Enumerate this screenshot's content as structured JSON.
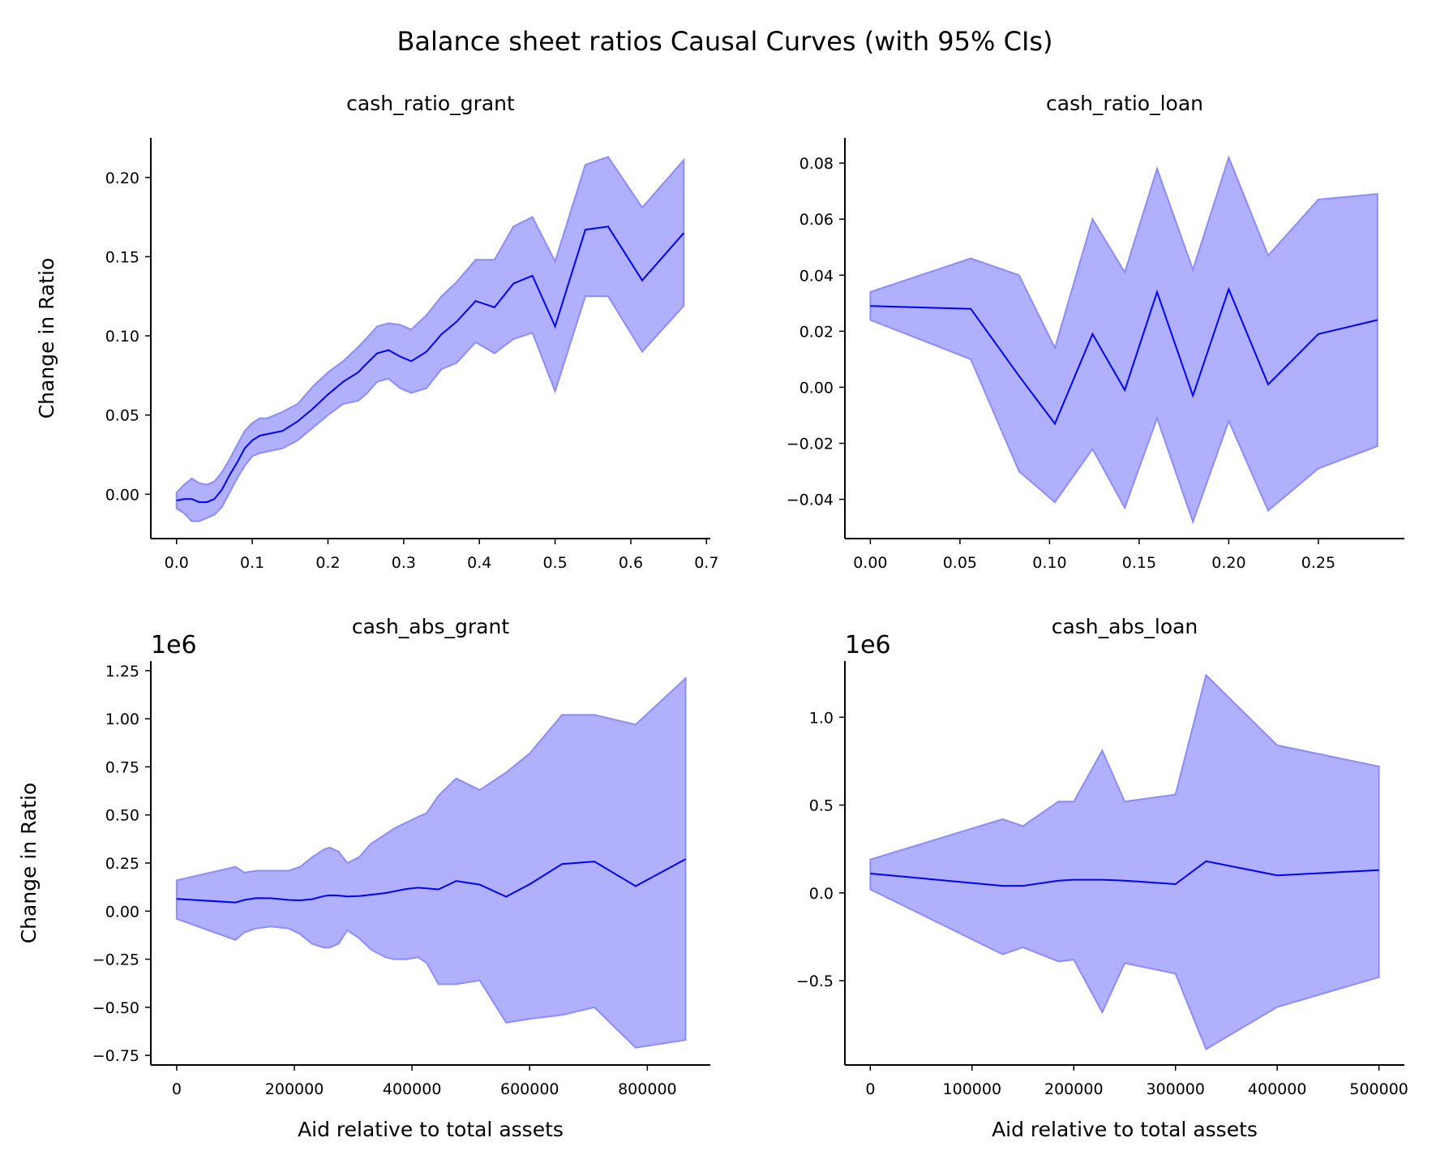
{
  "figure_title": "Balance sheet ratios Causal Curves (with 95% CIs)",
  "colors": {
    "line": "#0000ff",
    "band": "#b0b0ff",
    "band_edge": "#8c8cff",
    "axis": "#000000"
  },
  "chart_data": [
    {
      "type": "line",
      "title": "cash_ratio_grant",
      "xlabel": "",
      "ylabel": "Change in Ratio",
      "ylim": [
        -0.028,
        0.225
      ],
      "xlim": [
        -0.034,
        0.705
      ],
      "xticks": [
        "0.0",
        "0.1",
        "0.2",
        "0.3",
        "0.4",
        "0.5",
        "0.6",
        "0.7"
      ],
      "yticks": [
        "0.00",
        "0.05",
        "0.10",
        "0.15",
        "0.20"
      ],
      "offset_label": "",
      "series": [
        {
          "x": [
            0.0,
            0.01,
            0.02,
            0.03,
            0.04,
            0.05,
            0.06,
            0.07,
            0.08,
            0.09,
            0.1,
            0.11,
            0.12,
            0.14,
            0.16,
            0.18,
            0.2,
            0.22,
            0.24,
            0.25,
            0.265,
            0.28,
            0.295,
            0.31,
            0.33,
            0.35,
            0.37,
            0.395,
            0.42,
            0.445,
            0.47,
            0.5,
            0.54,
            0.57,
            0.615,
            0.67
          ],
          "y": [
            -0.004,
            -0.003,
            -0.003,
            -0.005,
            -0.005,
            -0.003,
            0.003,
            0.012,
            0.02,
            0.029,
            0.034,
            0.037,
            0.038,
            0.04,
            0.046,
            0.054,
            0.063,
            0.071,
            0.077,
            0.082,
            0.089,
            0.091,
            0.087,
            0.084,
            0.09,
            0.101,
            0.109,
            0.122,
            0.118,
            0.133,
            0.138,
            0.106,
            0.167,
            0.169,
            0.135,
            0.165
          ],
          "lower": [
            -0.009,
            -0.012,
            -0.017,
            -0.017,
            -0.015,
            -0.013,
            -0.008,
            0.001,
            0.01,
            0.018,
            0.024,
            0.026,
            0.027,
            0.029,
            0.034,
            0.042,
            0.05,
            0.057,
            0.059,
            0.063,
            0.071,
            0.073,
            0.067,
            0.064,
            0.067,
            0.079,
            0.083,
            0.096,
            0.089,
            0.098,
            0.102,
            0.065,
            0.125,
            0.125,
            0.09,
            0.119
          ],
          "upper": [
            0.001,
            0.006,
            0.01,
            0.007,
            0.006,
            0.008,
            0.014,
            0.022,
            0.031,
            0.04,
            0.045,
            0.048,
            0.048,
            0.052,
            0.057,
            0.068,
            0.077,
            0.084,
            0.093,
            0.098,
            0.106,
            0.108,
            0.107,
            0.104,
            0.113,
            0.125,
            0.134,
            0.148,
            0.148,
            0.169,
            0.175,
            0.147,
            0.208,
            0.213,
            0.181,
            0.211
          ]
        }
      ]
    },
    {
      "type": "line",
      "title": "cash_ratio_loan",
      "xlabel": "",
      "ylabel": "",
      "ylim": [
        -0.054,
        0.089
      ],
      "xlim": [
        -0.0142,
        0.298
      ],
      "xticks": [
        "0.00",
        "0.05",
        "0.10",
        "0.15",
        "0.20",
        "0.25"
      ],
      "yticks": [
        "−0.04",
        "−0.02",
        "0.00",
        "0.02",
        "0.04",
        "0.06",
        "0.08"
      ],
      "offset_label": "",
      "series": [
        {
          "x": [
            0.0,
            0.056,
            0.083,
            0.103,
            0.124,
            0.142,
            0.16,
            0.18,
            0.2,
            0.222,
            0.25,
            0.283
          ],
          "y": [
            0.029,
            0.028,
            0.004,
            -0.013,
            0.019,
            -0.001,
            0.034,
            -0.003,
            0.035,
            0.001,
            0.019,
            0.024
          ],
          "lower": [
            0.024,
            0.01,
            -0.03,
            -0.041,
            -0.022,
            -0.043,
            -0.011,
            -0.048,
            -0.012,
            -0.044,
            -0.029,
            -0.021
          ],
          "upper": [
            0.034,
            0.046,
            0.04,
            0.014,
            0.06,
            0.041,
            0.078,
            0.042,
            0.082,
            0.047,
            0.067,
            0.069
          ]
        }
      ]
    },
    {
      "type": "line",
      "title": "cash_abs_grant",
      "xlabel": "Aid relative to total assets",
      "ylabel": "Change in Ratio",
      "ylim": [
        -0.8,
        1.3
      ],
      "xlim": [
        -44000,
        907000
      ],
      "xticks": [
        "0",
        "200000",
        "400000",
        "600000",
        "800000"
      ],
      "yticks": [
        "−0.75",
        "−0.50",
        "−0.25",
        "0.00",
        "0.25",
        "0.50",
        "0.75",
        "1.00",
        "1.25"
      ],
      "offset_label": "1e6",
      "series": [
        {
          "x": [
            0,
            100000,
            115000,
            135000,
            160000,
            190000,
            210000,
            230000,
            250000,
            260000,
            275000,
            290000,
            310000,
            330000,
            355000,
            370000,
            390000,
            410000,
            425000,
            445000,
            475000,
            515000,
            560000,
            600000,
            655000,
            710000,
            780000,
            865000
          ],
          "y": [
            0.063,
            0.045,
            0.058,
            0.068,
            0.067,
            0.058,
            0.056,
            0.062,
            0.078,
            0.082,
            0.081,
            0.076,
            0.078,
            0.085,
            0.094,
            0.103,
            0.115,
            0.122,
            0.118,
            0.113,
            0.157,
            0.138,
            0.075,
            0.14,
            0.245,
            0.258,
            0.13,
            0.27
          ],
          "lower": [
            -0.04,
            -0.15,
            -0.11,
            -0.09,
            -0.08,
            -0.09,
            -0.12,
            -0.17,
            -0.19,
            -0.19,
            -0.17,
            -0.1,
            -0.14,
            -0.2,
            -0.24,
            -0.25,
            -0.25,
            -0.24,
            -0.27,
            -0.38,
            -0.38,
            -0.36,
            -0.58,
            -0.56,
            -0.54,
            -0.5,
            -0.71,
            -0.67
          ],
          "upper": [
            0.16,
            0.23,
            0.2,
            0.21,
            0.21,
            0.21,
            0.23,
            0.28,
            0.32,
            0.33,
            0.31,
            0.25,
            0.28,
            0.35,
            0.4,
            0.43,
            0.46,
            0.49,
            0.51,
            0.6,
            0.69,
            0.63,
            0.72,
            0.82,
            1.02,
            1.02,
            0.97,
            1.21
          ]
        }
      ]
    },
    {
      "type": "line",
      "title": "cash_abs_loan",
      "xlabel": "Aid relative to total assets",
      "ylabel": "",
      "ylim": [
        -0.98,
        1.32
      ],
      "xlim": [
        -25000,
        525000
      ],
      "xticks": [
        "0",
        "100000",
        "200000",
        "300000",
        "400000",
        "500000"
      ],
      "yticks": [
        "−0.5",
        "0.0",
        "0.5",
        "1.0"
      ],
      "offset_label": "1e6",
      "series": [
        {
          "x": [
            0,
            130000,
            150000,
            185000,
            200000,
            228000,
            250000,
            300000,
            330000,
            400000,
            500000
          ],
          "y": [
            0.11,
            0.04,
            0.04,
            0.07,
            0.075,
            0.075,
            0.07,
            0.05,
            0.18,
            0.1,
            0.13
          ],
          "lower": [
            0.02,
            -0.35,
            -0.31,
            -0.39,
            -0.38,
            -0.68,
            -0.4,
            -0.46,
            -0.89,
            -0.65,
            -0.48
          ],
          "upper": [
            0.19,
            0.42,
            0.38,
            0.52,
            0.52,
            0.81,
            0.52,
            0.56,
            1.24,
            0.84,
            0.72
          ]
        }
      ]
    }
  ]
}
